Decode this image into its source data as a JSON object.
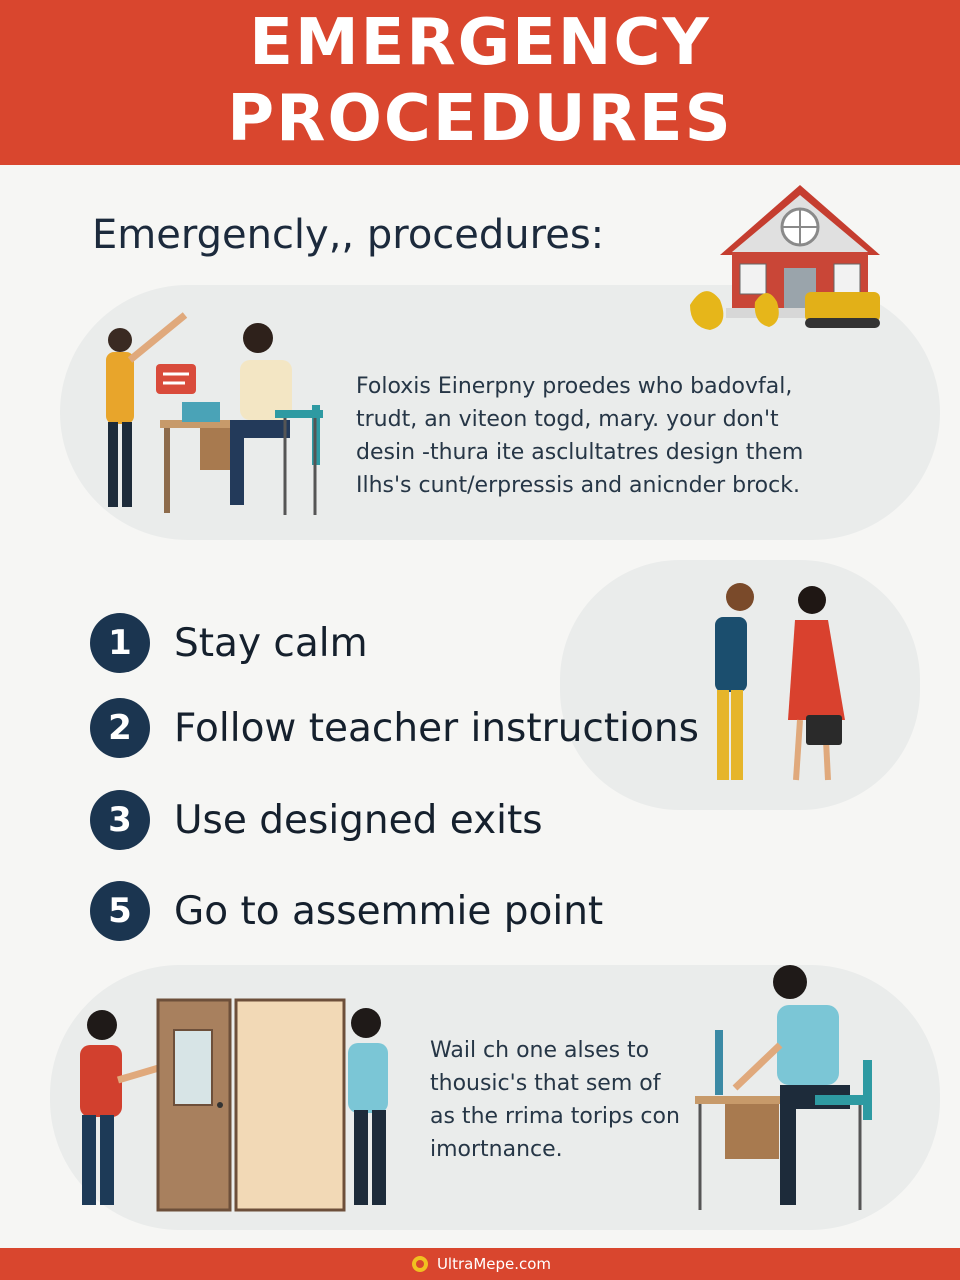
{
  "header": {
    "title_line1": "EMERGENCY",
    "title_line2": "PROCEDURES"
  },
  "intro": {
    "heading": "Emergencly,, procedures:",
    "paragraph": "Foloxis Einerpny proedes who badovfal, trudt, an viteon togd, mary. your don't desin -thura ite asclultatres design them Ilhs's cunt/erpressis and anicnder brock."
  },
  "steps": [
    {
      "number": "1",
      "label": "Stay calm"
    },
    {
      "number": "2",
      "label": "Follow teacher instructions"
    },
    {
      "number": "3",
      "label": "Use designed exits"
    },
    {
      "number": "5",
      "label": "Go to assemmie point"
    }
  ],
  "outro": {
    "paragraph": "Wail ch one alses to thousic's that sem of as the rrima torips con imortnance."
  },
  "footer": {
    "brand": "UltraMepe.com"
  },
  "colors": {
    "header": "#d9462e",
    "number_badge": "#1b3550",
    "text": "#15202d"
  },
  "icons": [
    "house-icon",
    "chat-bubble-icon",
    "laptop-icon",
    "door-icon",
    "handbag-icon",
    "logo-icon"
  ]
}
